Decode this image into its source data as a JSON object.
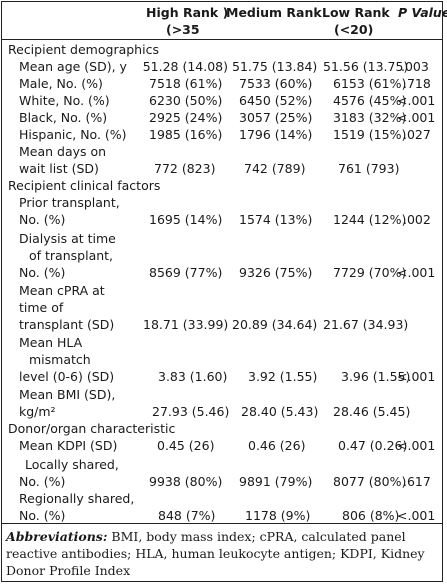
{
  "header": {
    "col_high_line1": "High Rank )",
    "col_high_line2": "(>35",
    "col_medium": "Medium Rank",
    "col_low_line1": "Low Rank",
    "col_low_line2": "(<20)",
    "col_p": "P Value"
  },
  "sections": {
    "recipient_demographics": "Recipient demographics",
    "recipient_clinical": "Recipient clinical factors",
    "donor_organ": "Donor/organ characteristic"
  },
  "rows": {
    "mean_age": {
      "label": [
        "Mean age (SD), y"
      ],
      "high": "51.28 (14.08)",
      "medium": "51.75 (13.84)",
      "low": "51.56 (13.75)",
      "p": ".003"
    },
    "male": {
      "label": [
        "Male, No. (%)"
      ],
      "high": "7518 (61%)",
      "medium": "7533 (60%)",
      "low": "6153 (61%)",
      "p": ".718"
    },
    "white": {
      "label": [
        "White, No. (%)"
      ],
      "high": "6230 (50%)",
      "medium": "6450 (52%)",
      "low": "4576 (45%)",
      "p": "<.001"
    },
    "black": {
      "label": [
        "Black, No. (%)"
      ],
      "high": "2925 (24%)",
      "medium": "3057 (25%)",
      "low": "3183 (32%)",
      "p": "<.001"
    },
    "hispanic": {
      "label": [
        "Hispanic, No. (%)"
      ],
      "high": "1985 (16%)",
      "medium": "1796 (14%)",
      "low": "1519 (15%)",
      "p": ".027"
    },
    "wait_days": {
      "label": [
        "Mean days on",
        "wait list (SD)"
      ],
      "high": "772 (823)",
      "medium": "742 (789)",
      "low": "761 (793)",
      "p": ""
    },
    "prior_tx": {
      "label": [
        "Prior transplant,",
        "No. (%)"
      ],
      "high": "1695 (14%)",
      "medium": "1574 (13%)",
      "low": "1244 (12%)",
      "p": ".002"
    },
    "dialysis": {
      "label": [
        "Dialysis at time",
        "of transplant,",
        "No. (%)"
      ],
      "high": "8569 (77%)",
      "medium": "9326 (75%)",
      "low": "7729 (70%)",
      "p": "<.001"
    },
    "cpra": {
      "label": [
        "Mean cPRA at",
        "time of",
        "transplant (SD)"
      ],
      "high": "18.71 (33.99)",
      "medium": "20.89 (34.64)",
      "low": "21.67 (34.93)",
      "p": ""
    },
    "hla": {
      "label": [
        "Mean HLA",
        "mismatch",
        "level (0-6) (SD)"
      ],
      "high": "3.83 (1.60)",
      "medium": "3.92 (1.55)",
      "low": "3.96 (1.55)",
      "p": "<.001"
    },
    "bmi": {
      "label": [
        "Mean BMI (SD),",
        "kg/m²"
      ],
      "high": "27.93 (5.46)",
      "medium": "28.40 (5.43)",
      "low": "28.46 (5.45)",
      "p": ""
    },
    "kdpi": {
      "label": [
        "Mean KDPI (SD)"
      ],
      "high": "0.45 (26)",
      "medium": "0.46 (26)",
      "low": "0.47 (0.26)",
      "p": "<.001"
    },
    "local": {
      "label": [
        "Locally shared,",
        "No. (%)"
      ],
      "high": "9938 (80%)",
      "medium": "9891 (79%)",
      "low": "8077 (80%)",
      "p": ".617"
    },
    "regional": {
      "label": [
        "Regionally shared,",
        "No. (%)"
      ],
      "high": "848 (7%)",
      "medium": "1178 (9%)",
      "low": "806 (8%)",
      "p": "<.001"
    }
  },
  "footnote": {
    "lead": "Abbreviations:",
    "text": " BMI, body mass index; cPRA, calculated panel reactive antibodies; HLA, human leukocyte antigen; KDPI, Kidney Donor Profile Index"
  }
}
